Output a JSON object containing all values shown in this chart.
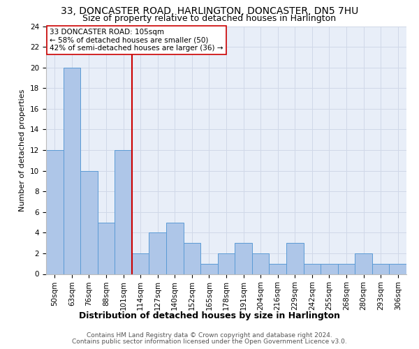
{
  "title": "33, DONCASTER ROAD, HARLINGTON, DONCASTER, DN5 7HU",
  "subtitle": "Size of property relative to detached houses in Harlington",
  "xlabel": "Distribution of detached houses by size in Harlington",
  "ylabel": "Number of detached properties",
  "bar_values": [
    12,
    20,
    10,
    5,
    12,
    2,
    4,
    5,
    3,
    1,
    2,
    3,
    2,
    1,
    3,
    1,
    1,
    1,
    2,
    1,
    1
  ],
  "bar_labels": [
    "50sqm",
    "63sqm",
    "76sqm",
    "88sqm",
    "101sqm",
    "114sqm",
    "127sqm",
    "140sqm",
    "152sqm",
    "165sqm",
    "178sqm",
    "191sqm",
    "204sqm",
    "216sqm",
    "229sqm",
    "242sqm",
    "255sqm",
    "268sqm",
    "280sqm",
    "293sqm",
    "306sqm"
  ],
  "bar_color": "#aec6e8",
  "bar_edgecolor": "#5b9bd5",
  "property_line_index": 4,
  "property_line_color": "#cc0000",
  "annotation_title": "33 DONCASTER ROAD: 105sqm",
  "annotation_line1": "← 58% of detached houses are smaller (50)",
  "annotation_line2": "42% of semi-detached houses are larger (36) →",
  "annotation_box_color": "#ffffff",
  "annotation_box_edgecolor": "#cc0000",
  "ylim": [
    0,
    24
  ],
  "yticks": [
    0,
    2,
    4,
    6,
    8,
    10,
    12,
    14,
    16,
    18,
    20,
    22,
    24
  ],
  "grid_color": "#d0d8e8",
  "background_color": "#e8eef8",
  "footer_line1": "Contains HM Land Registry data © Crown copyright and database right 2024.",
  "footer_line2": "Contains public sector information licensed under the Open Government Licence v3.0.",
  "title_fontsize": 10,
  "subtitle_fontsize": 9,
  "xlabel_fontsize": 9,
  "ylabel_fontsize": 8,
  "tick_fontsize": 7.5,
  "annotation_fontsize": 7.5,
  "footer_fontsize": 6.5
}
